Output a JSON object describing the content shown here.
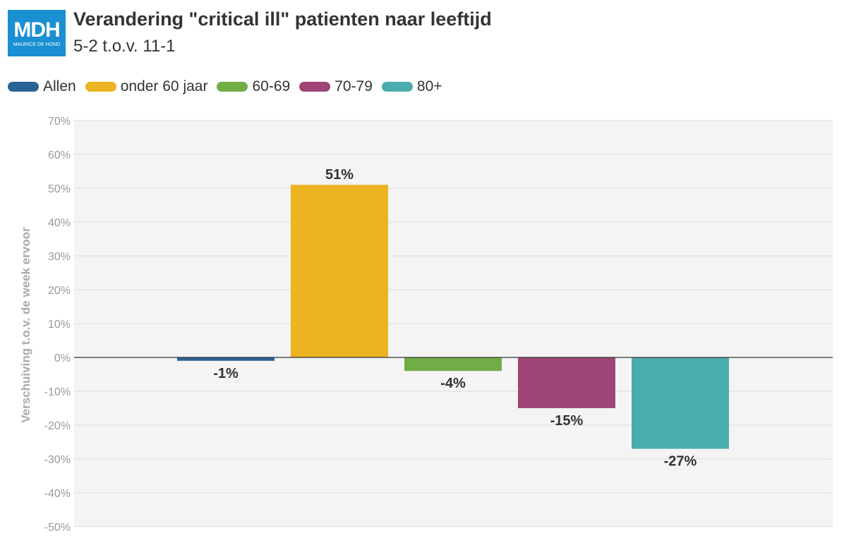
{
  "header": {
    "logo_text": "MDH",
    "logo_subtext": "MAURICE DE HOND",
    "title": "Verandering \"critical ill\" patienten naar leeftijd",
    "subtitle": "5-2 t.o.v. 11-1"
  },
  "colors": {
    "plot_background": "#f4f4f4",
    "gridline": "#dddddd",
    "zero_line": "#333333",
    "tick_text": "#999999",
    "axis_title": "#aaaaaa",
    "data_label": "#333333"
  },
  "legend": [
    {
      "label": "Allen",
      "color": "#2a6496"
    },
    {
      "label": "onder 60 jaar",
      "color": "#ecb323"
    },
    {
      "label": "60-69",
      "color": "#71ad47"
    },
    {
      "label": "70-79",
      "color": "#9e4575"
    },
    {
      "label": "80+",
      "color": "#4bacad"
    }
  ],
  "chart_data": {
    "type": "bar",
    "title": "Verandering \"critical ill\" patienten naar leeftijd",
    "subtitle": "5-2 t.o.v. 11-1",
    "xlabel": "",
    "ylabel": "Verschuiving t.o.v. de week ervoor",
    "ylim": [
      -50,
      70
    ],
    "yticks": [
      70,
      60,
      50,
      40,
      30,
      20,
      10,
      0,
      -10,
      -20,
      -30,
      -40,
      -50
    ],
    "ytick_labels": [
      "70%",
      "60%",
      "50%",
      "40%",
      "30%",
      "20%",
      "10%",
      "0%",
      "-10%",
      "-20%",
      "-30%",
      "-40%",
      "-50%"
    ],
    "grid": true,
    "legend_position": "top-left",
    "series": [
      {
        "name": "Allen",
        "value": -1,
        "label": "-1%",
        "color": "#2a6496"
      },
      {
        "name": "onder 60 jaar",
        "value": 51,
        "label": "51%",
        "color": "#ecb323"
      },
      {
        "name": "60-69",
        "value": -4,
        "label": "-4%",
        "color": "#71ad47"
      },
      {
        "name": "70-79",
        "value": -15,
        "label": "-15%",
        "color": "#9e4575"
      },
      {
        "name": "80+",
        "value": -27,
        "label": "-27%",
        "color": "#4bacad"
      }
    ]
  }
}
